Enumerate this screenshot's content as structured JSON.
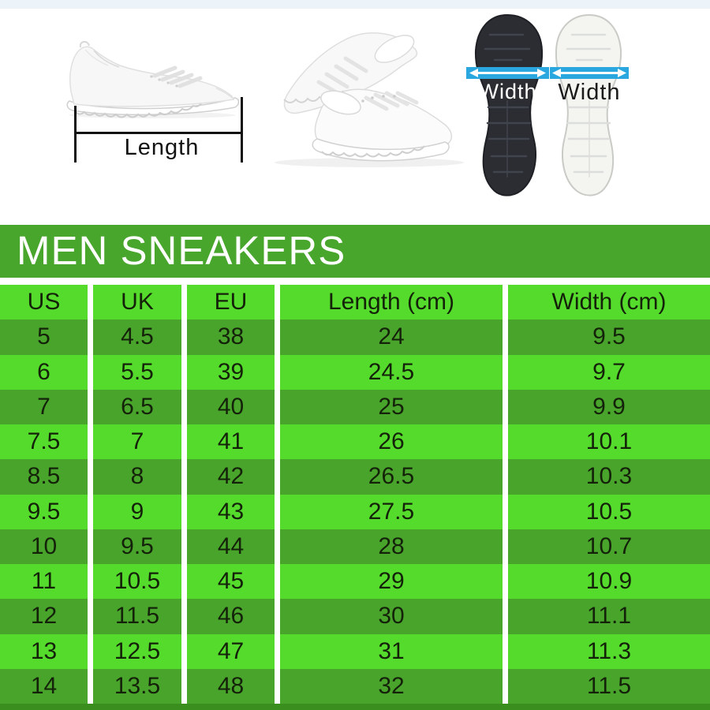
{
  "figures": {
    "length_diagram": {
      "label": "Length"
    },
    "sole_black": {
      "label": "Width"
    },
    "sole_white": {
      "label": "Width"
    }
  },
  "chart_data": {
    "type": "table",
    "title": "MEN SNEAKERS",
    "columns": [
      "US",
      "UK",
      "EU",
      "Length (cm)",
      "Width (cm)"
    ],
    "rows": [
      [
        5,
        4.5,
        38,
        24,
        9.5
      ],
      [
        6,
        5.5,
        39,
        24.5,
        9.7
      ],
      [
        7,
        6.5,
        40,
        25,
        9.9
      ],
      [
        7.5,
        7,
        41,
        26,
        10.1
      ],
      [
        8.5,
        8,
        42,
        26.5,
        10.3
      ],
      [
        9.5,
        9,
        43,
        27.5,
        10.5
      ],
      [
        10,
        9.5,
        44,
        28,
        10.7
      ],
      [
        11,
        10.5,
        45,
        29,
        10.9
      ],
      [
        12,
        11.5,
        46,
        30,
        11.1
      ],
      [
        13,
        12.5,
        47,
        31,
        11.3
      ],
      [
        14,
        13.5,
        48,
        32,
        11.5
      ]
    ]
  },
  "colors": {
    "title_bar_green": "#48A62C",
    "row_bright_green": "#55DB2C",
    "row_dark_green": "#49A42B",
    "bottom_strip_green": "#3A8E1D",
    "arrow_band_blue": "#2AA7DE",
    "sole_black": "#2B2D33",
    "sole_white": "#F4F4F1"
  }
}
